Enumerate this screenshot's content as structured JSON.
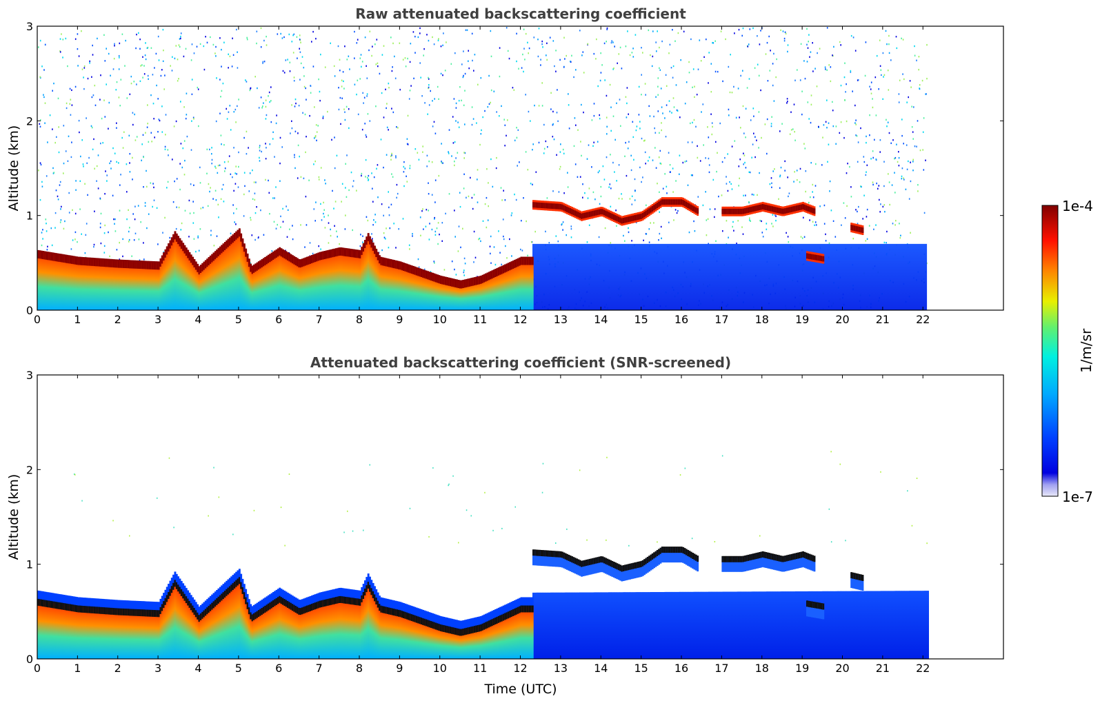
{
  "chart_data": [
    {
      "type": "heatmap",
      "title": "Raw attenuated backscattering coefficient",
      "xlabel": "",
      "ylabel": "Altitude (km)",
      "xlim": [
        0,
        24
      ],
      "ylim": [
        0,
        3
      ],
      "xticks": [
        "0",
        "1",
        "2",
        "3",
        "4",
        "5",
        "6",
        "7",
        "8",
        "9",
        "10",
        "11",
        "12",
        "13",
        "14",
        "15",
        "16",
        "17",
        "18",
        "19",
        "20",
        "21",
        "22"
      ],
      "yticks": [
        "0",
        "1",
        "2",
        "3"
      ],
      "data_time_range": [
        0,
        22.1
      ],
      "boundary_layer_top_km": [
        [
          0,
          0.62
        ],
        [
          1,
          0.55
        ],
        [
          2,
          0.52
        ],
        [
          3,
          0.5
        ],
        [
          3.4,
          0.82
        ],
        [
          4,
          0.45
        ],
        [
          4.5,
          0.65
        ],
        [
          5,
          0.85
        ],
        [
          5.3,
          0.45
        ],
        [
          6,
          0.65
        ],
        [
          6.5,
          0.52
        ],
        [
          7,
          0.6
        ],
        [
          7.5,
          0.65
        ],
        [
          8,
          0.62
        ],
        [
          8.2,
          0.8
        ],
        [
          8.5,
          0.55
        ],
        [
          9,
          0.5
        ],
        [
          10,
          0.35
        ],
        [
          10.5,
          0.3
        ],
        [
          11,
          0.35
        ],
        [
          11.5,
          0.45
        ],
        [
          12,
          0.55
        ],
        [
          12.3,
          0.55
        ]
      ],
      "cloud_layers_km": [
        {
          "t_start": 12.3,
          "t_end": 16.4,
          "points": [
            [
              12.3,
              1.12
            ],
            [
              13,
              1.1
            ],
            [
              13.5,
              1.0
            ],
            [
              14,
              1.05
            ],
            [
              14.5,
              0.95
            ],
            [
              15,
              1.0
            ],
            [
              15.5,
              1.15
            ],
            [
              16,
              1.15
            ],
            [
              16.4,
              1.05
            ]
          ]
        },
        {
          "t_start": 17.0,
          "t_end": 19.3,
          "points": [
            [
              17,
              1.05
            ],
            [
              17.5,
              1.05
            ],
            [
              18,
              1.1
            ],
            [
              18.5,
              1.05
            ],
            [
              19,
              1.1
            ],
            [
              19.3,
              1.05
            ]
          ]
        },
        {
          "t_start": 19.1,
          "t_end": 19.5,
          "points": [
            [
              19.1,
              0.58
            ],
            [
              19.5,
              0.55
            ]
          ]
        },
        {
          "t_start": 20.2,
          "t_end": 20.5,
          "points": [
            [
              20.2,
              0.88
            ],
            [
              20.5,
              0.85
            ]
          ]
        }
      ]
    },
    {
      "type": "heatmap",
      "title": "Attenuated backscattering coefficient (SNR-screened)",
      "xlabel": "Time (UTC)",
      "ylabel": "Altitude (km)",
      "xlim": [
        0,
        24
      ],
      "ylim": [
        0,
        3
      ],
      "xticks": [
        "0",
        "1",
        "2",
        "3",
        "4",
        "5",
        "6",
        "7",
        "8",
        "9",
        "10",
        "11",
        "12",
        "13",
        "14",
        "15",
        "16",
        "17",
        "18",
        "19",
        "20",
        "21",
        "22"
      ],
      "yticks": [
        "0",
        "1",
        "2",
        "3"
      ],
      "data_time_range": [
        0,
        22.1
      ],
      "screened_top_km": [
        [
          0,
          0.75
        ],
        [
          3,
          0.62
        ],
        [
          3.4,
          0.92
        ],
        [
          5,
          0.92
        ],
        [
          8.2,
          0.95
        ],
        [
          12.3,
          0.7
        ],
        [
          22.1,
          0.72
        ]
      ]
    }
  ],
  "colorbar": {
    "label": "1/m/sr",
    "max_label": "1e-4",
    "min_label": "1e-7",
    "colors": [
      "#e8e8f8",
      "#c0c0f0",
      "#9090f0",
      "#0000e0",
      "#0033ff",
      "#0088ff",
      "#00c8ff",
      "#00e8d0",
      "#40f090",
      "#a0f040",
      "#f0f000",
      "#ffb000",
      "#ff6000",
      "#ff1000",
      "#c80000",
      "#800000"
    ]
  }
}
